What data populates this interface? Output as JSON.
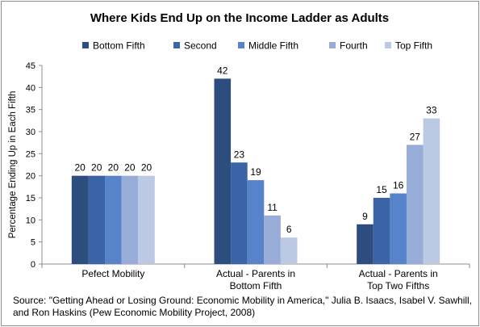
{
  "chart_data": {
    "type": "bar",
    "title": "Where Kids End Up on the Income Ladder as Adults",
    "ylabel": "Percentage Ending Up in Each Fifth",
    "xlabel": "",
    "ylim": [
      0,
      45
    ],
    "yticks": [
      0,
      5,
      10,
      15,
      20,
      25,
      30,
      35,
      40,
      45
    ],
    "ytick_labels": [
      "0",
      "5",
      "10",
      "15",
      "20",
      "25",
      "30",
      "35",
      "40",
      "45"
    ],
    "grid": false,
    "legend_position": "top",
    "categories": [
      [
        "Pefect Mobility"
      ],
      [
        "Actual - Parents in",
        "Bottom Fifth"
      ],
      [
        "Actual - Parents in",
        "Top Two Fifths"
      ]
    ],
    "series": [
      {
        "name": "Bottom Fifth",
        "color": "#2e4d7f",
        "values": [
          20,
          42,
          9
        ]
      },
      {
        "name": "Second",
        "color": "#3b64a6",
        "values": [
          20,
          23,
          15
        ]
      },
      {
        "name": "Middle Fifth",
        "color": "#5683c9",
        "values": [
          20,
          19,
          16
        ]
      },
      {
        "name": "Fourth",
        "color": "#97acd6",
        "values": [
          20,
          11,
          27
        ]
      },
      {
        "name": "Top Fifth",
        "color": "#bcc9e4",
        "values": [
          20,
          6,
          33
        ]
      }
    ],
    "data_labels": [
      [
        "20",
        "42",
        "9"
      ],
      [
        "20",
        "23",
        "15"
      ],
      [
        "20",
        "19",
        "16"
      ],
      [
        "20",
        "11",
        "27"
      ],
      [
        "20",
        "6",
        "33"
      ]
    ]
  },
  "source": "Source: \"Getting Ahead or Losing Ground: Economic Mobility in America,\" Julia B. Isaacs, Isabel V. Sawhill, and Ron Haskins (Pew Economic Mobility Project, 2008)"
}
